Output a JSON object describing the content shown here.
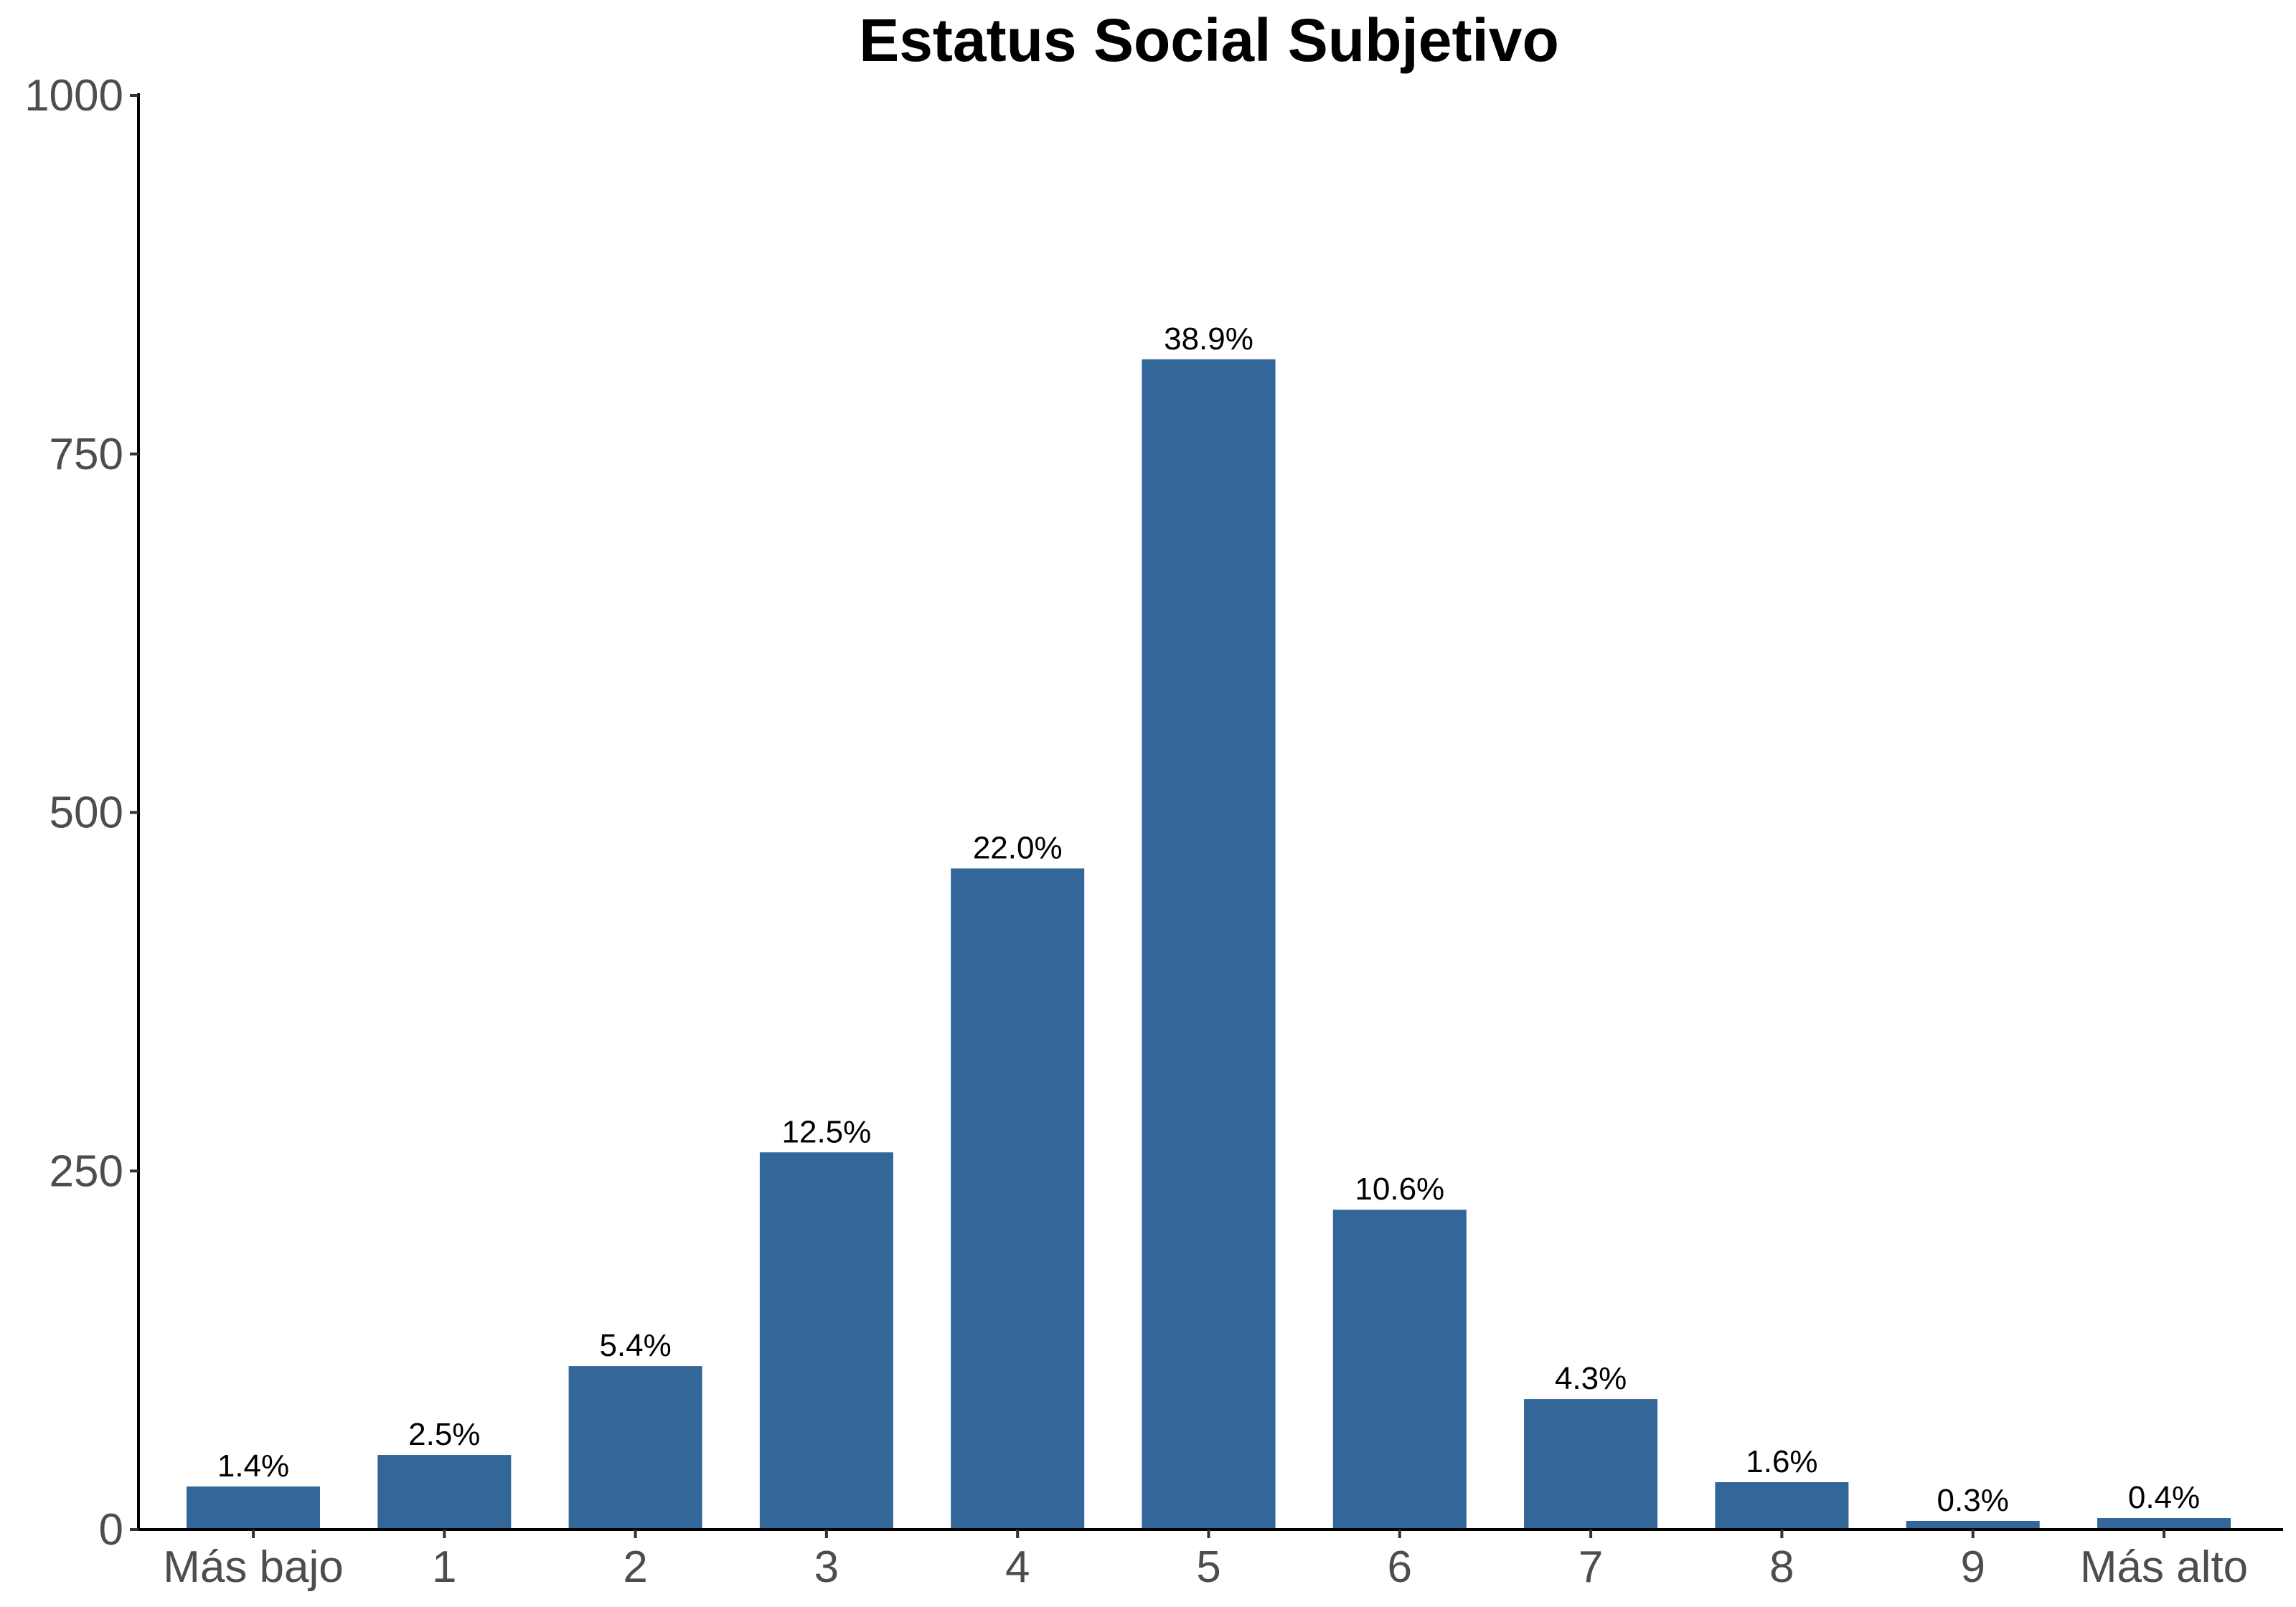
{
  "chart_data": {
    "type": "bar",
    "title": "Estatus Social Subjetivo",
    "xlabel": "",
    "ylabel": "",
    "categories": [
      "Más bajo",
      "1",
      "2",
      "3",
      "4",
      "5",
      "6",
      "7",
      "8",
      "9",
      "Más alto"
    ],
    "values": [
      30,
      52,
      114,
      263,
      461,
      816,
      223,
      91,
      33,
      6,
      8
    ],
    "data_labels": [
      "1.4%",
      "2.5%",
      "5.4%",
      "12.5%",
      "22.0%",
      "38.9%",
      "10.6%",
      "4.3%",
      "1.6%",
      "0.3%",
      "0.4%"
    ],
    "ylim": [
      0,
      1000
    ],
    "yticks": [
      0,
      250,
      500,
      750,
      1000
    ],
    "grid": false,
    "legend": "none",
    "bar_color": "#336699"
  }
}
